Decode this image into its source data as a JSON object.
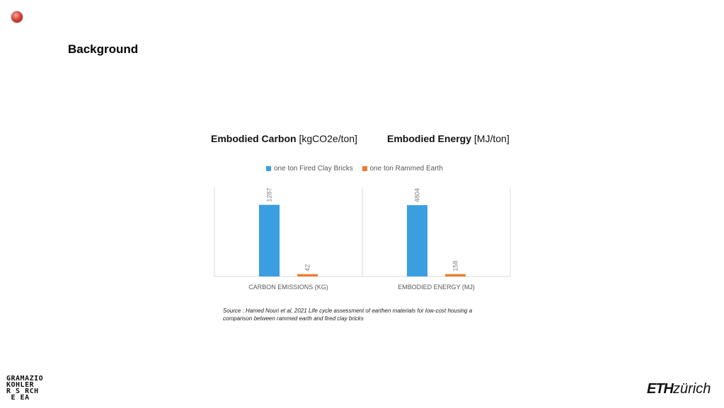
{
  "slide": {
    "title": "Background"
  },
  "headings": {
    "left": {
      "bold": "Embodied Carbon",
      "unit": "[kgCO2e/ton]"
    },
    "right": {
      "bold": "Embodied Energy",
      "unit": "[MJ/ton]"
    }
  },
  "legend": [
    {
      "label": "one ton Fired Clay Bricks",
      "color": "#3b9ee0"
    },
    {
      "label": "one ton Rammed Earth",
      "color": "#ec7c30"
    }
  ],
  "chart_data": [
    {
      "type": "bar",
      "categories": [
        "CARBON EMISSIONS (KG)"
      ],
      "series": [
        {
          "name": "one ton Fired Clay Bricks",
          "values": [
            1287
          ]
        },
        {
          "name": "one ton Rammed Earth",
          "values": [
            42
          ]
        }
      ],
      "ylim": [
        0,
        1600
      ],
      "grid": false,
      "legend": "top"
    },
    {
      "type": "bar",
      "categories": [
        "EMBODIED ENERGY (MJ)"
      ],
      "series": [
        {
          "name": "one ton Fired Clay Bricks",
          "values": [
            4804
          ]
        },
        {
          "name": "one ton Rammed Earth",
          "values": [
            158
          ]
        }
      ],
      "ylim": [
        0,
        6000
      ],
      "grid": false,
      "legend": "top"
    }
  ],
  "source": "Source : Hamed Nouri et al, 2021 Life cycle assessment of earthen materials for low-cost housing a comparison between rammed earth and fired clay bricks",
  "logos": {
    "left_lines": [
      "GRAMAZIO",
      "KOHLER",
      "R S RCH",
      " E EA"
    ],
    "right_eth": "ETH",
    "right_zurich": "zürich"
  }
}
